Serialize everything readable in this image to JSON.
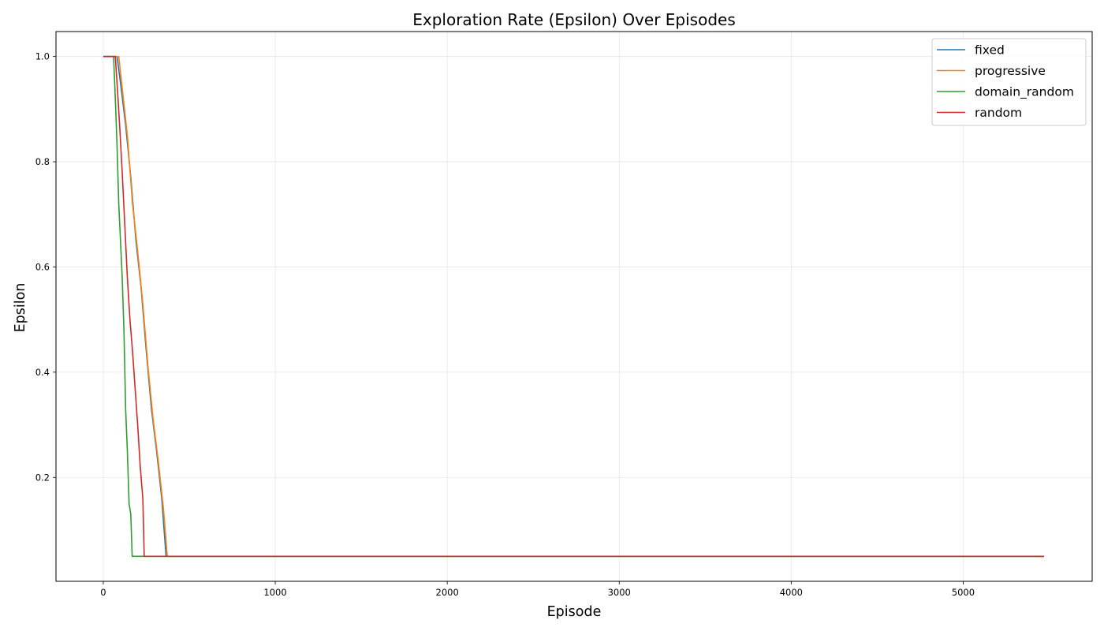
{
  "chart_data": {
    "type": "line",
    "title": "Exploration Rate (Epsilon) Over Episodes",
    "xlabel": "Episode",
    "ylabel": "Epsilon",
    "xlim": [
      -275,
      5750
    ],
    "ylim": [
      0.0025,
      1.0475
    ],
    "xticks": [
      0,
      1000,
      2000,
      3000,
      4000,
      5000
    ],
    "yticks": [
      0.2,
      0.4,
      0.6,
      0.8,
      1.0
    ],
    "grid": true,
    "legend_position": "top-right",
    "series": [
      {
        "name": "fixed",
        "color": "#1f77b4",
        "x": [
          0,
          80,
          100,
          130,
          160,
          190,
          220,
          250,
          280,
          310,
          340,
          365,
          5470
        ],
        "y": [
          1.0,
          1.0,
          0.95,
          0.87,
          0.77,
          0.65,
          0.56,
          0.44,
          0.33,
          0.25,
          0.16,
          0.05,
          0.05
        ]
      },
      {
        "name": "progressive",
        "color": "#ff7f0e",
        "x": [
          0,
          90,
          110,
          140,
          170,
          200,
          230,
          260,
          290,
          320,
          350,
          372,
          5470
        ],
        "y": [
          1.0,
          1.0,
          0.94,
          0.85,
          0.72,
          0.63,
          0.53,
          0.41,
          0.31,
          0.23,
          0.14,
          0.05,
          0.05
        ]
      },
      {
        "name": "domain_random",
        "color": "#2ca02c",
        "x": [
          0,
          60,
          70,
          80,
          90,
          100,
          110,
          120,
          130,
          140,
          150,
          160,
          168,
          5470
        ],
        "y": [
          1.0,
          1.0,
          0.92,
          0.83,
          0.72,
          0.65,
          0.58,
          0.48,
          0.33,
          0.25,
          0.15,
          0.13,
          0.05,
          0.05
        ]
      },
      {
        "name": "random",
        "color": "#d62728",
        "x": [
          0,
          70,
          80,
          95,
          110,
          125,
          140,
          155,
          170,
          185,
          200,
          215,
          230,
          238,
          5470
        ],
        "y": [
          1.0,
          1.0,
          0.95,
          0.87,
          0.78,
          0.68,
          0.58,
          0.5,
          0.44,
          0.37,
          0.3,
          0.22,
          0.16,
          0.05,
          0.05
        ]
      }
    ]
  }
}
